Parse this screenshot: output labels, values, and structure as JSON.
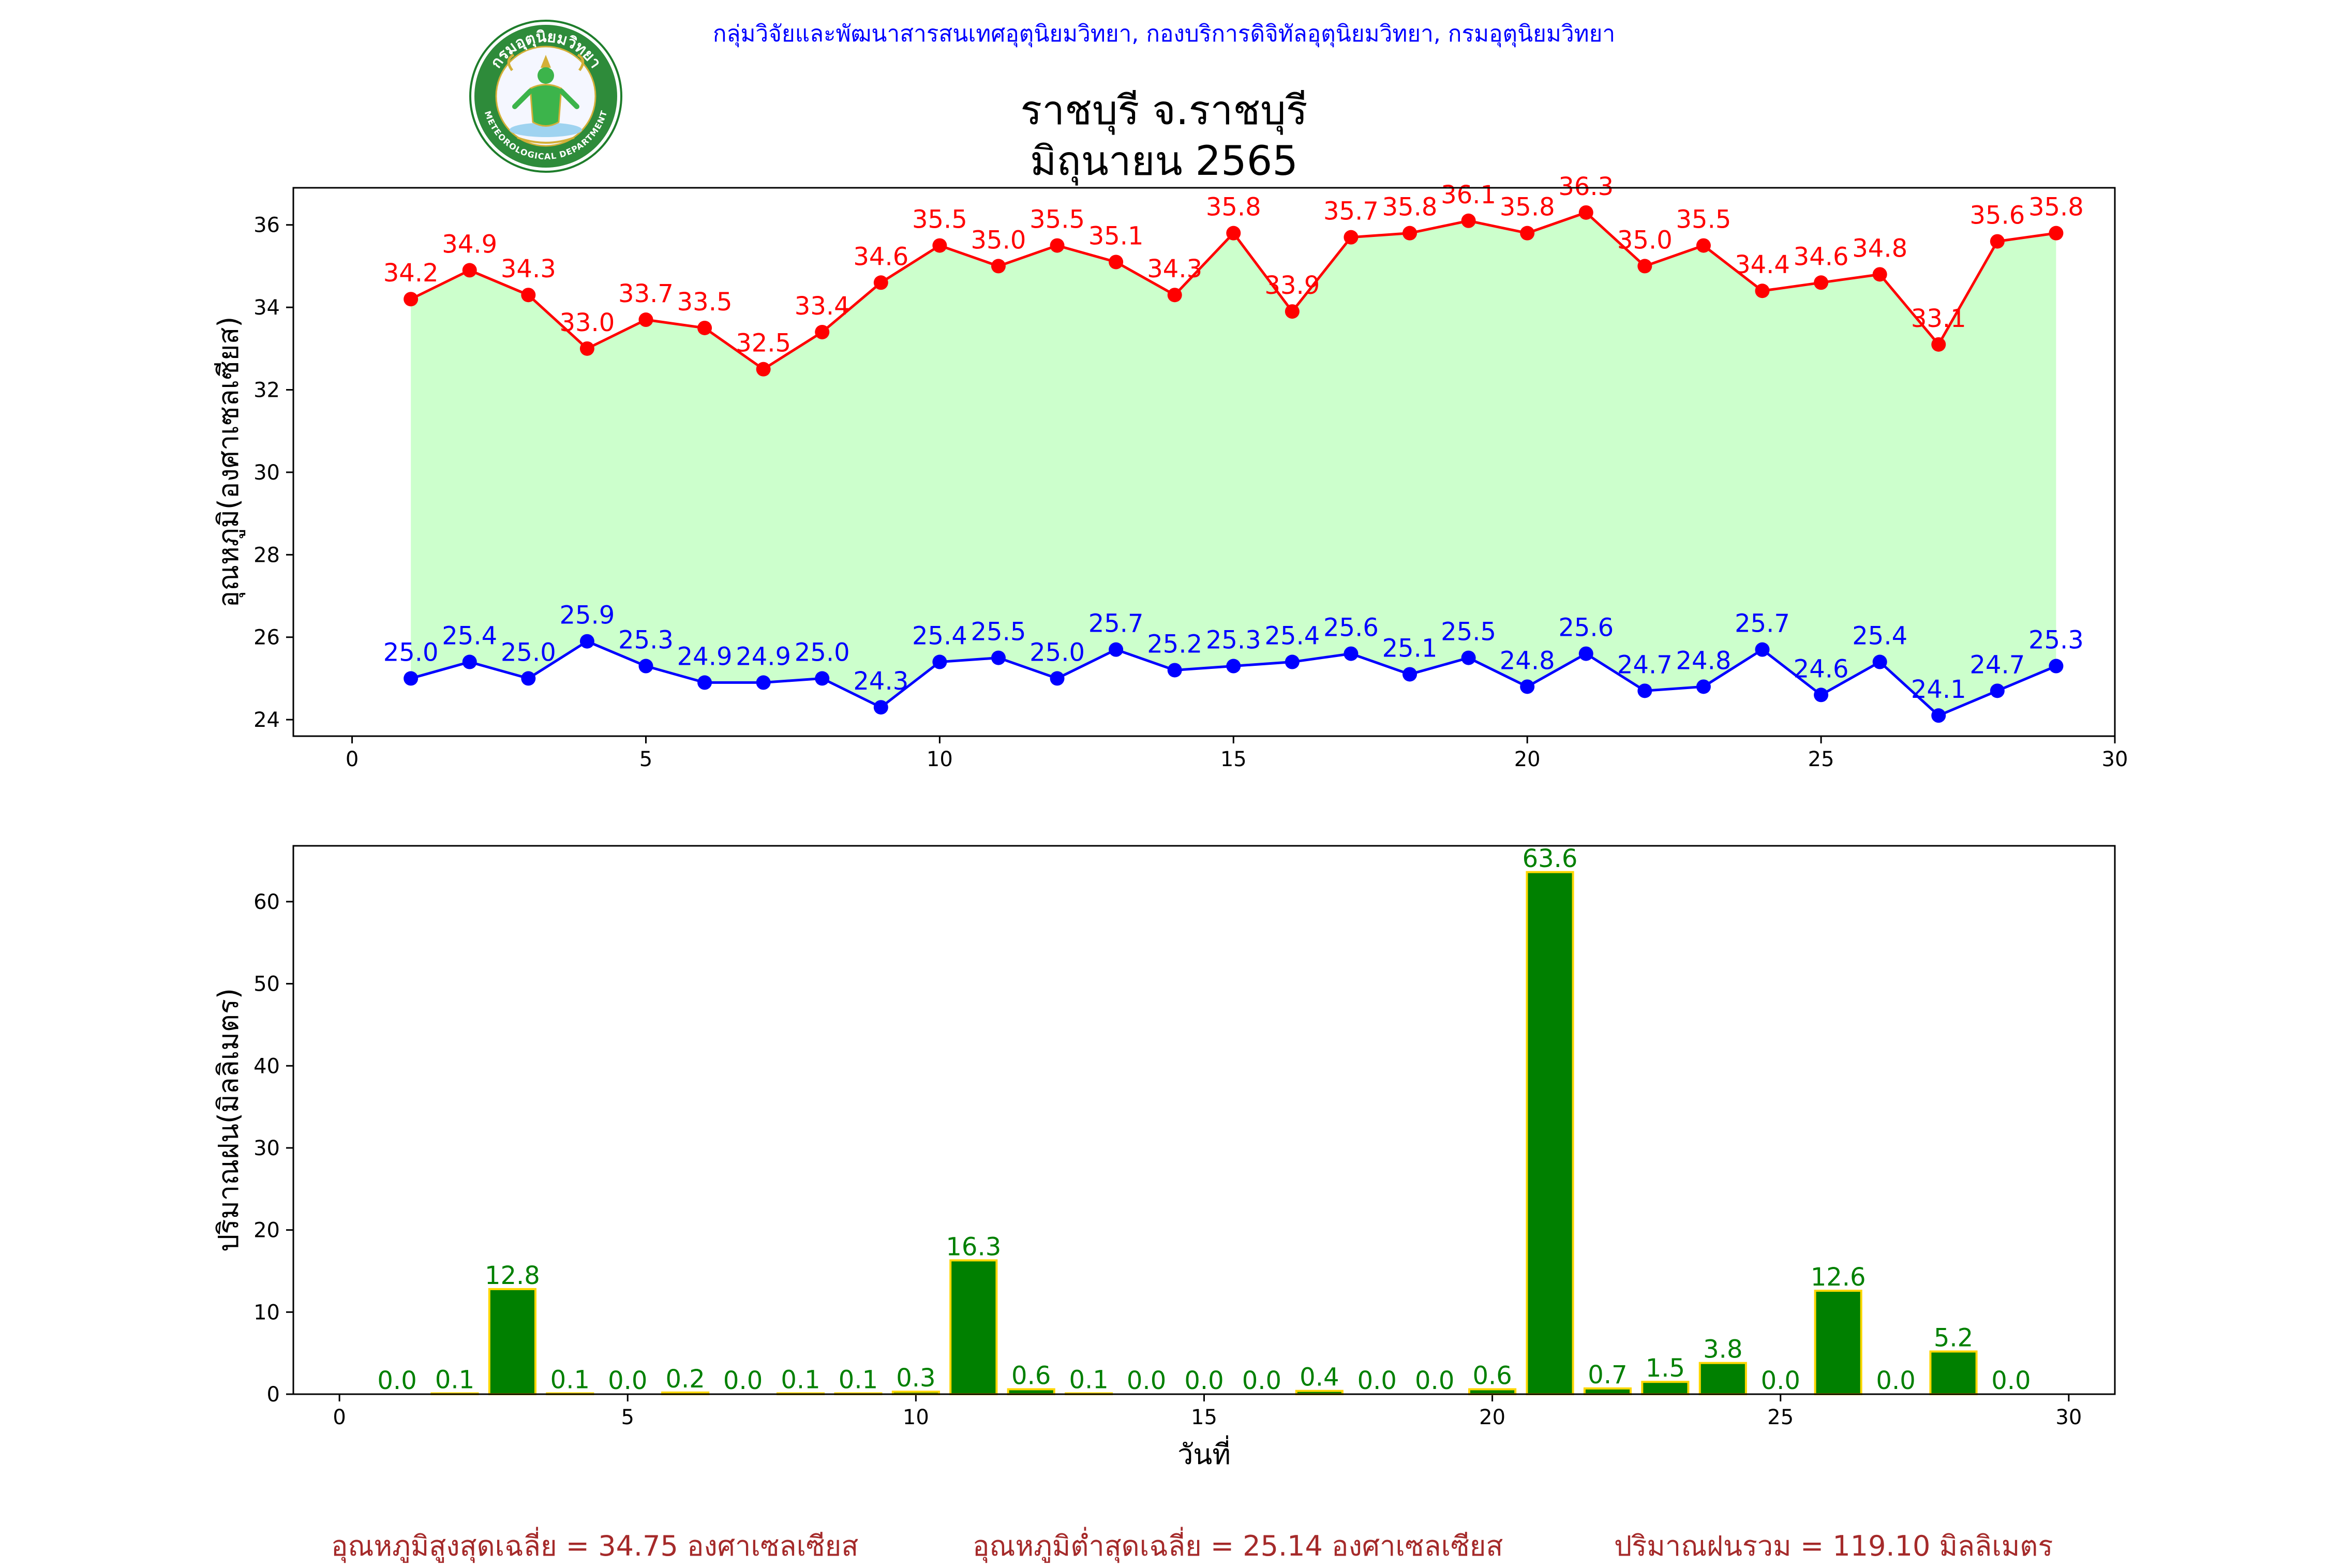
{
  "header": {
    "org_line": "กลุ่มวิจัยและพัฒนาสารสนเทศอุตุนิยมวิทยา, กองบริการดิจิทัลอุตุนิยมวิทยา, กรมอุตุนิยมวิทยา",
    "title_line1": "ราชบุรี จ.ราชบุรี",
    "title_line2": "มิถุนายน 2565",
    "logo_text_top": "กรมอุตุนิยมวิทยา",
    "logo_text_bottom": "METEOROLOGICAL DEPARTMENT",
    "logo_icon": "meteorological-department-seal-icon"
  },
  "footer": {
    "avg_max": "อุณหภูมิสูงสุดเฉลี่ย = 34.75 องศาเซลเซียส",
    "avg_min": "อุณหภูมิต่ำสุดเฉลี่ย = 25.14 องศาเซลเซียส",
    "total_rain": "ปริมาณฝนรวม = 119.10 มิลลิเมตร"
  },
  "chart_data": [
    {
      "type": "line",
      "ylabel": "อุณหภูมิ(องศาเซลเซียส)",
      "xlabel": "",
      "xlim": [
        -1,
        30
      ],
      "ylim": [
        23.6,
        36.9
      ],
      "xticks": [
        0,
        5,
        10,
        15,
        20,
        25,
        30
      ],
      "yticks": [
        24,
        26,
        28,
        30,
        32,
        34,
        36
      ],
      "fill_between": true,
      "fill_color": "#ccffcc",
      "x": [
        1,
        2,
        3,
        4,
        5,
        6,
        7,
        8,
        9,
        10,
        11,
        12,
        13,
        14,
        15,
        16,
        17,
        18,
        19,
        20,
        21,
        22,
        23,
        24,
        25,
        26,
        27,
        28,
        29
      ],
      "series": [
        {
          "color": "#ff0000",
          "values": [
            34.2,
            34.9,
            34.3,
            33.0,
            33.7,
            33.5,
            32.5,
            33.4,
            34.6,
            35.5,
            35.0,
            35.5,
            35.1,
            34.3,
            35.8,
            33.9,
            35.7,
            35.8,
            36.1,
            35.8,
            36.3,
            35.0,
            35.5,
            34.4,
            34.6,
            34.8,
            33.1,
            35.6,
            35.8
          ]
        },
        {
          "color": "#0000ff",
          "values": [
            25.0,
            25.4,
            25.0,
            25.9,
            25.3,
            24.9,
            24.9,
            25.0,
            24.3,
            25.4,
            25.5,
            25.0,
            25.7,
            25.2,
            25.3,
            25.4,
            25.6,
            25.1,
            25.5,
            24.8,
            25.6,
            24.7,
            24.8,
            25.7,
            24.6,
            25.4,
            24.1,
            24.7,
            25.3
          ]
        }
      ]
    },
    {
      "type": "bar",
      "ylabel": "ปริมาณฝน(มิลลิเมตร)",
      "xlabel": "วันที่",
      "xlim": [
        -0.8,
        30.8
      ],
      "ylim": [
        0,
        66.8
      ],
      "xticks": [
        0,
        5,
        10,
        15,
        20,
        25,
        30
      ],
      "yticks": [
        0,
        10,
        20,
        30,
        40,
        50,
        60
      ],
      "bar_color": "#008000",
      "edge_color": "#ffd700",
      "label_color": "#008000",
      "x": [
        1,
        2,
        3,
        4,
        5,
        6,
        7,
        8,
        9,
        10,
        11,
        12,
        13,
        14,
        15,
        16,
        17,
        18,
        19,
        20,
        21,
        22,
        23,
        24,
        25,
        26,
        27,
        28,
        29
      ],
      "values": [
        0.0,
        0.1,
        12.8,
        0.1,
        0.0,
        0.2,
        0.0,
        0.1,
        0.1,
        0.3,
        16.3,
        0.6,
        0.1,
        0.0,
        0.0,
        0.0,
        0.4,
        0.0,
        0.0,
        0.6,
        63.6,
        0.7,
        1.5,
        3.8,
        0.0,
        12.6,
        0.0,
        5.2,
        0.0
      ]
    }
  ]
}
